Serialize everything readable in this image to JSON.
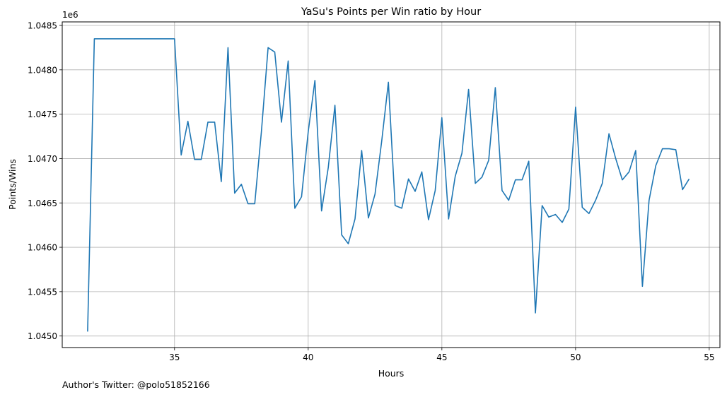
{
  "chart_data": {
    "type": "line",
    "title": "YaSu's Points per Win ratio by Hour",
    "xlabel": "Hours",
    "ylabel": "Points/Wins",
    "offset_label": "1e6",
    "xlim": [
      30.8,
      55.4
    ],
    "ylim": [
      1044870,
      1048540
    ],
    "xticks": [
      35,
      40,
      45,
      50,
      55
    ],
    "yticks": [
      1045000,
      1045500,
      1046000,
      1046500,
      1047000,
      1047500,
      1048000,
      1048500
    ],
    "ytick_labels": [
      "1.0450",
      "1.0455",
      "1.0460",
      "1.0465",
      "1.0470",
      "1.0475",
      "1.0480",
      "1.0485"
    ],
    "grid": true,
    "line_color": "#1f77b4",
    "series": [
      {
        "x": [
          31.75,
          32.0,
          32.25,
          32.5,
          32.75,
          33.0,
          33.25,
          33.5,
          33.75,
          34.0,
          34.25,
          34.5,
          34.75,
          35.0,
          35.25,
          35.5,
          35.75,
          36.0,
          36.25,
          36.5,
          36.75,
          37.0,
          37.25,
          37.5,
          37.75,
          38.0,
          38.25,
          38.5,
          38.75,
          39.0,
          39.25,
          39.5,
          39.75,
          40.0,
          40.25,
          40.5,
          40.75,
          41.0,
          41.25,
          41.5,
          41.75,
          42.0,
          42.25,
          42.5,
          42.75,
          43.0,
          43.25,
          43.5,
          43.75,
          44.0,
          44.25,
          44.5,
          44.75,
          45.0,
          45.25,
          45.5,
          45.75,
          46.0,
          46.25,
          46.5,
          46.75,
          47.0,
          47.25,
          47.5,
          47.75,
          48.0,
          48.25,
          48.5,
          48.75,
          49.0,
          49.25,
          49.5,
          49.75,
          50.0,
          50.25,
          50.5,
          50.75,
          51.0,
          51.25,
          51.5,
          51.75,
          52.0,
          52.25,
          52.5,
          52.75,
          53.0,
          53.25,
          53.5,
          53.75,
          54.0,
          54.25
        ],
        "y": [
          1045050,
          1048350,
          1048350,
          1048350,
          1048350,
          1048350,
          1048350,
          1048350,
          1048350,
          1048350,
          1048350,
          1048350,
          1048350,
          1048350,
          1047040,
          1047420,
          1046990,
          1046990,
          1047410,
          1047410,
          1046740,
          1048250,
          1046610,
          1046710,
          1046490,
          1046490,
          1047300,
          1048250,
          1048200,
          1047410,
          1048100,
          1046440,
          1046570,
          1047300,
          1047880,
          1046410,
          1046900,
          1047600,
          1046140,
          1046040,
          1046320,
          1047090,
          1046330,
          1046600,
          1047200,
          1047860,
          1046470,
          1046440,
          1046770,
          1046630,
          1046850,
          1046310,
          1046640,
          1047460,
          1046320,
          1046800,
          1047060,
          1047780,
          1046720,
          1046790,
          1046980,
          1047800,
          1046640,
          1046530,
          1046760,
          1046760,
          1046970,
          1045260,
          1046470,
          1046340,
          1046370,
          1046280,
          1046430,
          1047580,
          1046450,
          1046380,
          1046530,
          1046720,
          1047280,
          1047000,
          1046760,
          1046850,
          1047090,
          1045560,
          1046530,
          1046920,
          1047110,
          1047110,
          1047100,
          1046650,
          1046770
        ]
      }
    ]
  },
  "footer": "Author's Twitter: @polo51852166"
}
